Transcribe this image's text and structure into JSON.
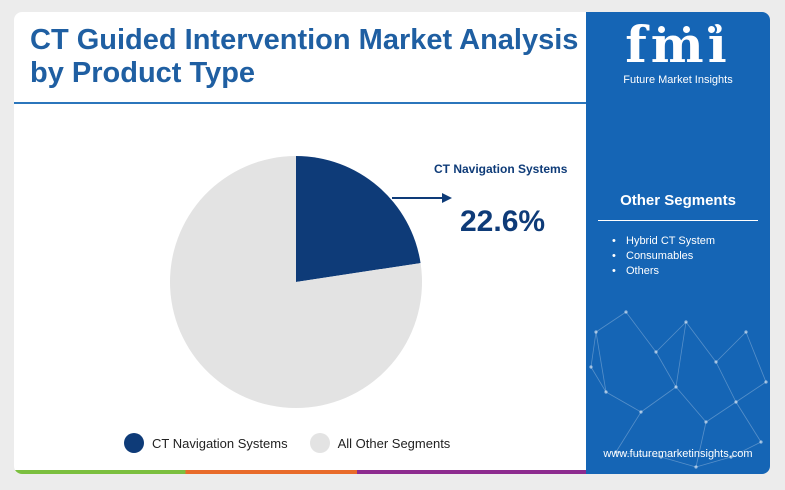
{
  "title": "CT Guided Intervention Market Analysis by Product Type",
  "callout": {
    "label": "CT Navigation Systems",
    "value": "22.6%"
  },
  "chart_data": {
    "type": "pie",
    "title": "CT Guided Intervention Market Analysis by Product Type",
    "slices": [
      {
        "label": "CT Navigation Systems",
        "value": 22.6,
        "color": "#0e3b78"
      },
      {
        "label": "All Other Segments",
        "value": 77.4,
        "color": "#e3e3e3"
      }
    ],
    "legend_position": "bottom"
  },
  "legend": [
    {
      "label": "CT Navigation Systems",
      "color": "#0e3b78"
    },
    {
      "label": "All Other Segments",
      "color": "#e3e3e3"
    }
  ],
  "sidebar": {
    "logo_mark": "fmi",
    "logo_sub": "Future Market Insights",
    "segments_title": "Other Segments",
    "segments": [
      "Hybrid CT System",
      "Consumables",
      "Others"
    ],
    "website": "www.futuremarketinsights.com"
  },
  "colors": {
    "accent_blue": "#1565b5",
    "title_blue": "#1f5fa2",
    "navy": "#0e3b78"
  }
}
